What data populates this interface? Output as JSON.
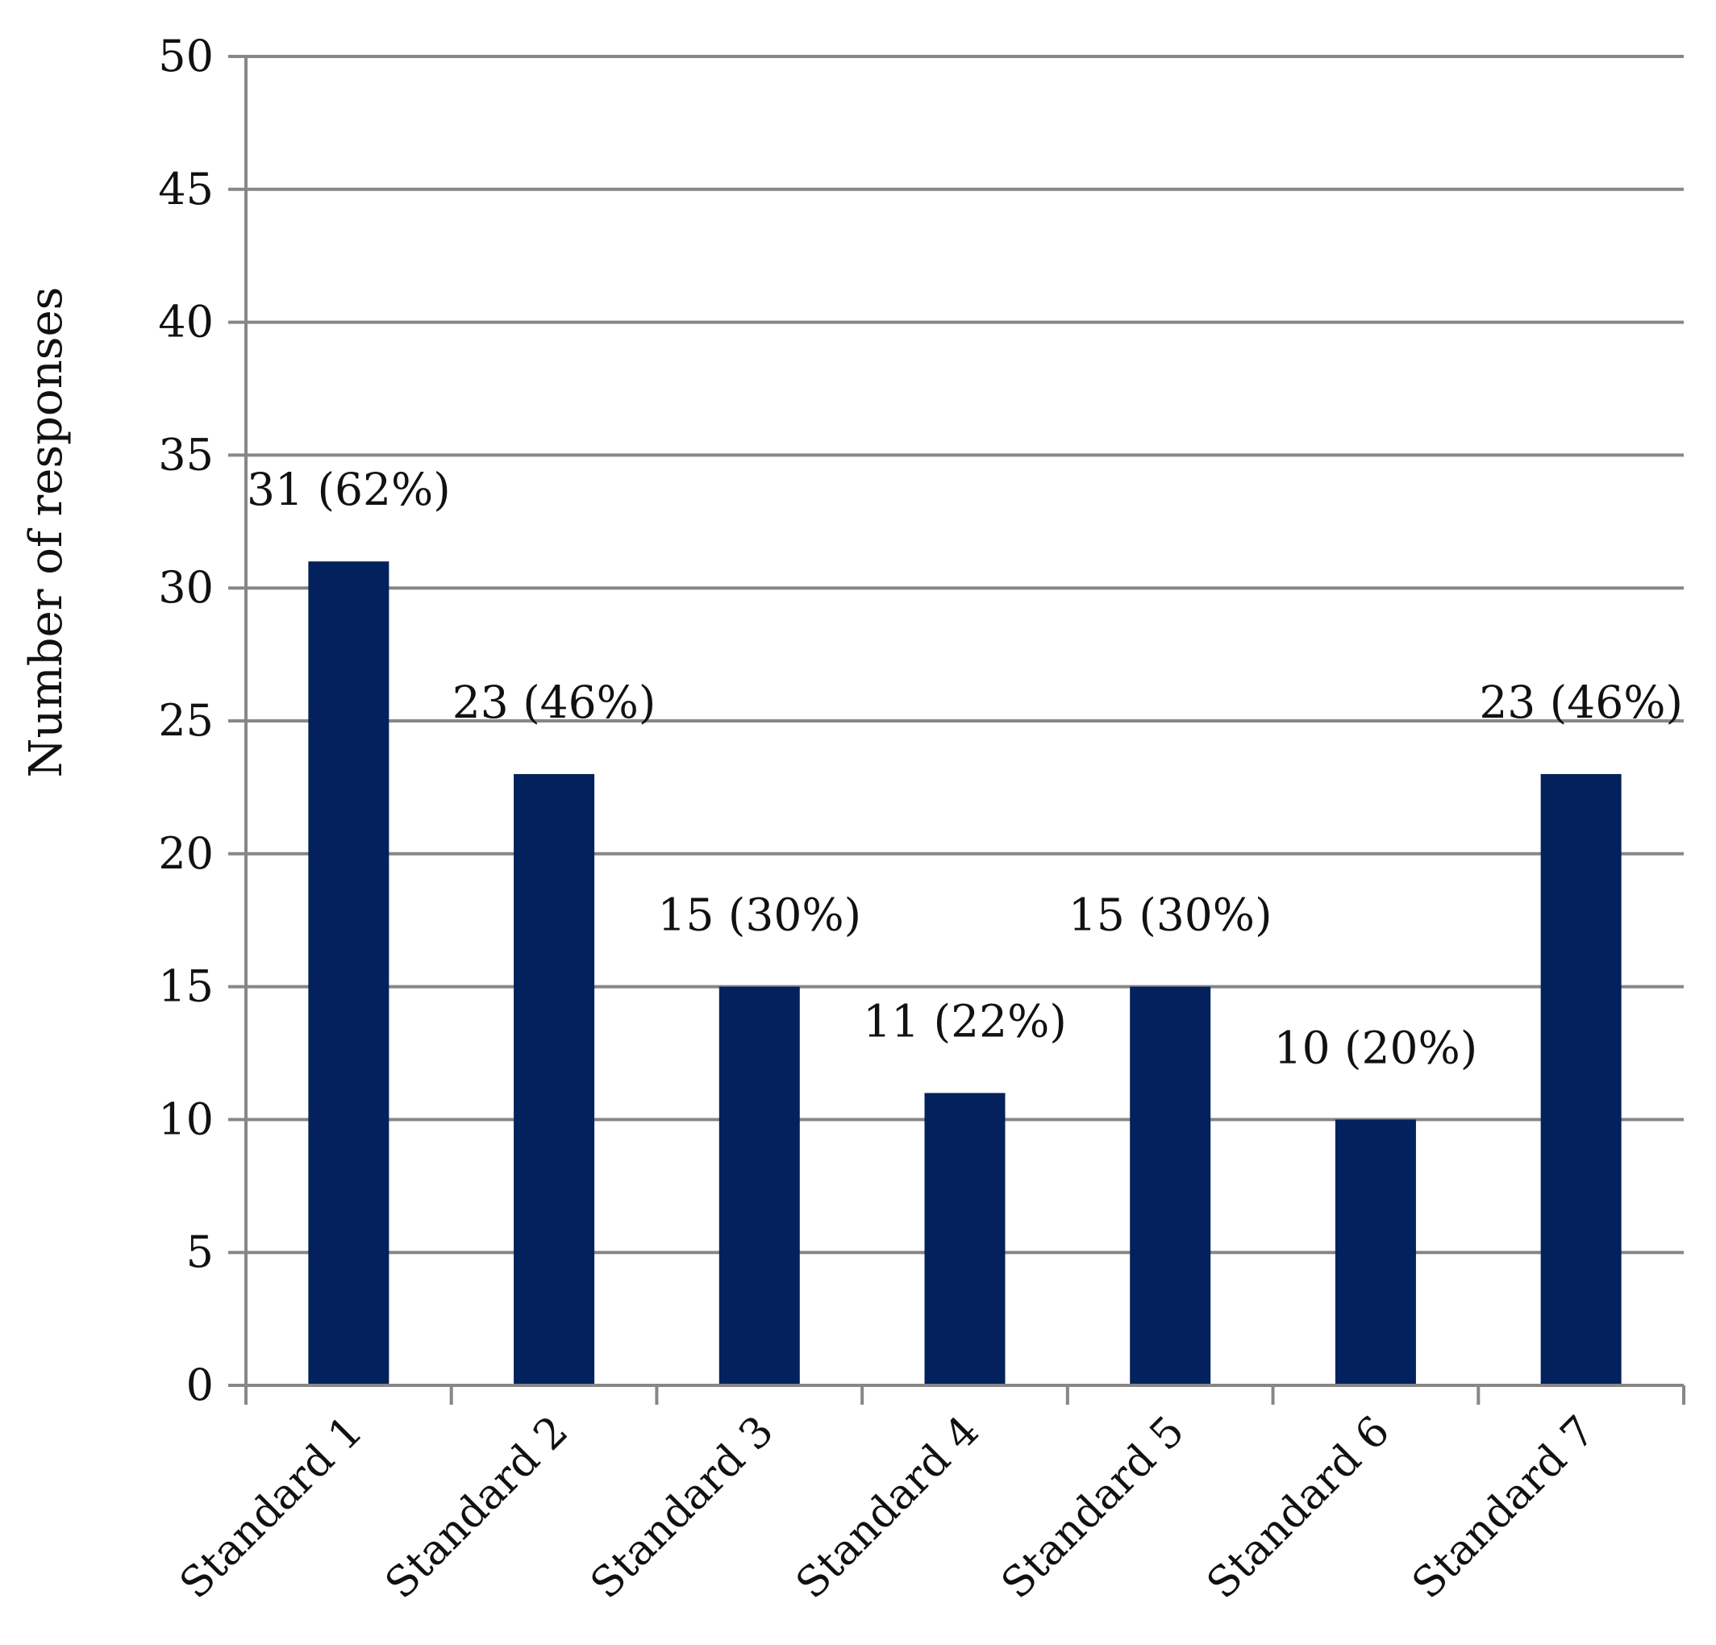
{
  "chart_data": {
    "type": "bar",
    "title": "",
    "xlabel": "",
    "ylabel": "Number of responses",
    "ylim": [
      0,
      50
    ],
    "yticks": [
      0,
      5,
      10,
      15,
      20,
      25,
      30,
      35,
      40,
      45,
      50
    ],
    "grid": true,
    "legend": "none",
    "categories": [
      "Standard 1",
      "Standard 2",
      "Standard 3",
      "Standard 4",
      "Standard 5",
      "Standard 6",
      "Standard 7"
    ],
    "series": [
      {
        "values": [
          31,
          23,
          15,
          11,
          15,
          10,
          23
        ],
        "data_labels": [
          "31 (62%)",
          "23 (46%)",
          "15 (30%)",
          "11 (22%)",
          "15 (30%)",
          "10 (20%)",
          "23 (46%)"
        ]
      }
    ],
    "colors": {
      "bar": "#03215c",
      "grid": "#878787",
      "axis": "#878787",
      "text": "#111111"
    }
  }
}
